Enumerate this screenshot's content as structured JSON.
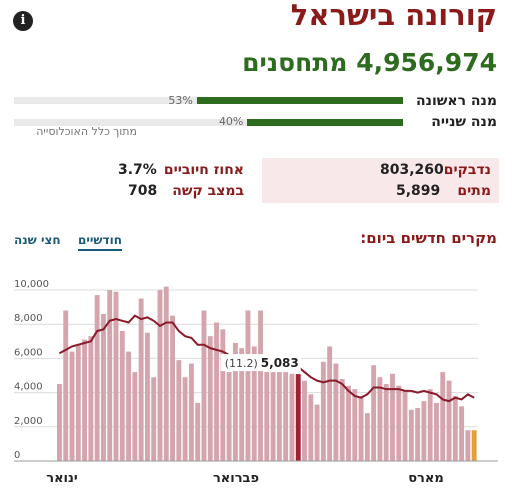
{
  "header": {
    "title": "קורונה בישראל",
    "info_icon": "info-icon"
  },
  "vaccinated": {
    "value": "4,956,974",
    "label": "מתחסנים"
  },
  "doses": [
    {
      "label": "מנה ראשונה",
      "pct_text": "53%",
      "fraction": 0.53
    },
    {
      "label": "מנה שנייה",
      "pct_text": "40%",
      "fraction": 0.4
    }
  ],
  "population_note": "מתוך כלל האוכלוסייה",
  "stats": {
    "infected_label": "נדבקים",
    "infected_value": "803,260",
    "dead_label": "מתים",
    "dead_value": "5,899",
    "positive_label": "אחוז חיוביים",
    "positive_value": "3.7%",
    "severe_label": "במצב קשה",
    "severe_value": "708"
  },
  "chart_section": {
    "title": "מקרים חדשים ביום:",
    "tabs": [
      "חודשיים",
      "חצי שנה"
    ],
    "active_tab": "חודשיים"
  },
  "chart_data": {
    "type": "bar",
    "title": "מקרים חדשים ביום:",
    "x_month_labels": [
      "ינואר",
      "פברואר",
      "מארס"
    ],
    "ylim": [
      0,
      10000
    ],
    "y_ticks": [
      "0",
      "2,000",
      "4,000",
      "6,000",
      "8,000",
      "10,000"
    ],
    "grid": true,
    "values": [
      4500,
      8800,
      6400,
      6800,
      7100,
      7300,
      9700,
      8600,
      10000,
      9900,
      7600,
      6400,
      5200,
      9500,
      7500,
      4900,
      10000,
      10200,
      8500,
      5900,
      4900,
      5700,
      3400,
      8800,
      7300,
      8100,
      7700,
      5200,
      6900,
      6600,
      8800,
      6700,
      8800,
      5200,
      5200,
      5200,
      5200,
      5100,
      5083,
      4700,
      3900,
      3300,
      5800,
      6700,
      5700,
      4800,
      4400,
      4200,
      3800,
      2800,
      5600,
      4900,
      4500,
      5100,
      4400,
      4100,
      3000,
      3100,
      3500,
      4200,
      3400,
      5200,
      4700,
      3800,
      3200,
      1800,
      1800
    ],
    "highlight": {
      "index": 38,
      "value": "5,083",
      "annotation": "(11.2)",
      "color": "#9e2230"
    },
    "last_bar_color": "#e0a13c",
    "bar_color": "#d4a5ad",
    "moving_average": [
      6300,
      6500,
      6700,
      6800,
      6900,
      7000,
      7600,
      7700,
      8200,
      8300,
      8200,
      8100,
      8500,
      8300,
      8400,
      8200,
      7900,
      8100,
      8100,
      7600,
      7300,
      7200,
      6800,
      6800,
      6600,
      6500,
      6400,
      6200,
      6000,
      5900,
      5900,
      6000,
      6100,
      5900,
      5900,
      5900,
      5800,
      5600,
      5500,
      5200,
      4900,
      4700,
      4600,
      4700,
      4700,
      4500,
      4100,
      3800,
      3700,
      3900,
      4300,
      4300,
      4200,
      4200,
      4200,
      4100,
      4100,
      4000,
      4100,
      4000,
      3900,
      3600,
      3500,
      3700,
      3600,
      3900,
      3700
    ],
    "moving_average_color": "#8b1a2a"
  }
}
